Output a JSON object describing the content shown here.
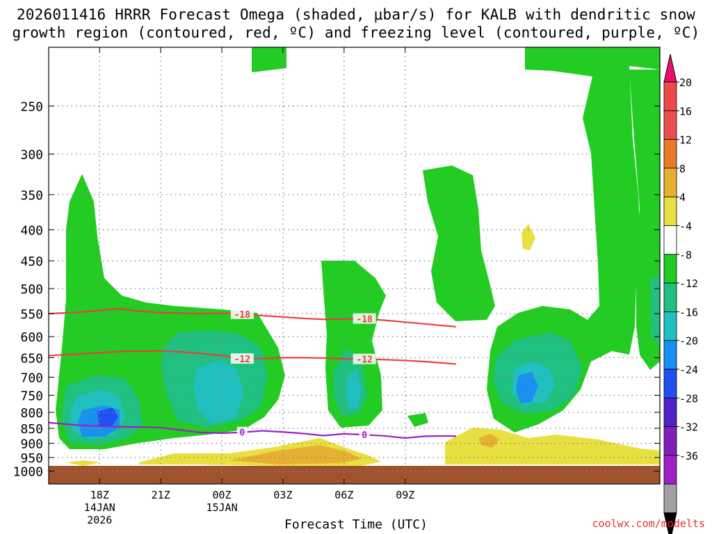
{
  "title": {
    "line1": "2026011416 HRRR Forecast Omega (shaded, μbar/s) for KALB with dendritic snow",
    "line2": "growth region (contoured, red, ºC) and freezing level (contoured, purple, ºC)"
  },
  "footer": "coolwx.com/modelts",
  "chart_data": {
    "type": "heatmap",
    "title": "2026011416 HRRR Forecast Omega (shaded, μbar/s) for KALB with dendritic snow growth region (contoured, red, ºC) and freezing level (contoured, purple, ºC)",
    "xlabel": "Forecast Time (UTC)",
    "ylabel": "",
    "x_range_hours": [
      -2.5,
      27.5
    ],
    "x_ticks": [
      {
        "hour": 0,
        "lines": [
          "18Z",
          "14JAN",
          "2026"
        ]
      },
      {
        "hour": 3,
        "lines": [
          "21Z"
        ]
      },
      {
        "hour": 6,
        "lines": [
          "00Z",
          "15JAN"
        ]
      },
      {
        "hour": 9,
        "lines": [
          "03Z"
        ]
      },
      {
        "hour": 12,
        "lines": [
          "06Z"
        ]
      },
      {
        "hour": 15,
        "lines": [
          "09Z"
        ]
      }
    ],
    "y_scale": "log",
    "y_range": [
      1050,
      200
    ],
    "y_ticks": [
      "250",
      "300",
      "350",
      "400",
      "450",
      "500",
      "550",
      "600",
      "650",
      "700",
      "750",
      "800",
      "850",
      "900",
      "950",
      "1000"
    ],
    "grid": true,
    "ground_color": "#a0522d",
    "colorbar": {
      "labels": [
        "20",
        "16",
        "12",
        "8",
        "4",
        "-4",
        "-8",
        "-12",
        "-16",
        "-20",
        "-24",
        "-28",
        "-32",
        "-36"
      ],
      "colors": [
        "#e8106e",
        "#f04848",
        "#ea5050",
        "#e87a28",
        "#e8b030",
        "#e8e040",
        "#ffffff",
        "#22cc22",
        "#20c080",
        "#20c0c0",
        "#1890f0",
        "#2050f0",
        "#5020c8",
        "#8020b8",
        "#a020c8",
        "#a0a0a0",
        "#000000"
      ]
    },
    "contours": [
      {
        "label": "-18",
        "color": "#e84040",
        "points": [
          [
            -2.5,
            550
          ],
          [
            -1,
            547
          ],
          [
            0,
            543
          ],
          [
            1,
            540
          ],
          [
            2,
            545
          ],
          [
            3,
            548
          ],
          [
            4,
            549
          ],
          [
            5,
            550
          ],
          [
            6,
            549
          ],
          [
            7,
            551
          ],
          [
            8,
            554
          ],
          [
            9,
            557
          ],
          [
            10,
            560
          ],
          [
            11,
            562
          ],
          [
            12,
            561
          ],
          [
            13,
            561
          ],
          [
            14,
            564
          ],
          [
            15,
            568
          ],
          [
            16,
            572
          ],
          [
            17,
            576
          ],
          [
            17.5,
            578
          ]
        ]
      },
      {
        "label": "-12",
        "color": "#e84040",
        "points": [
          [
            -2.5,
            645
          ],
          [
            -1,
            641
          ],
          [
            0,
            638
          ],
          [
            1,
            635
          ],
          [
            2,
            634
          ],
          [
            3,
            633
          ],
          [
            4,
            636
          ],
          [
            5,
            640
          ],
          [
            6,
            645
          ],
          [
            7,
            653
          ],
          [
            8,
            652
          ],
          [
            9,
            650
          ],
          [
            10,
            650
          ],
          [
            11,
            651
          ],
          [
            12,
            653
          ],
          [
            13,
            654
          ],
          [
            14,
            655
          ],
          [
            15,
            657
          ],
          [
            16,
            660
          ],
          [
            17,
            664
          ],
          [
            17.5,
            666
          ]
        ]
      },
      {
        "label": "0",
        "color": "#9a20c8",
        "points": [
          [
            -2.5,
            832
          ],
          [
            -1,
            840
          ],
          [
            0,
            843
          ],
          [
            1,
            845
          ],
          [
            2,
            846
          ],
          [
            3,
            848
          ],
          [
            4,
            856
          ],
          [
            5,
            864
          ],
          [
            6,
            866
          ],
          [
            7,
            863
          ],
          [
            8,
            858
          ],
          [
            9,
            862
          ],
          [
            10,
            867
          ],
          [
            11,
            874
          ],
          [
            12,
            868
          ],
          [
            13,
            871
          ],
          [
            14,
            875
          ],
          [
            15,
            882
          ],
          [
            16,
            876
          ],
          [
            17,
            875
          ],
          [
            17.5,
            876
          ]
        ]
      }
    ]
  }
}
